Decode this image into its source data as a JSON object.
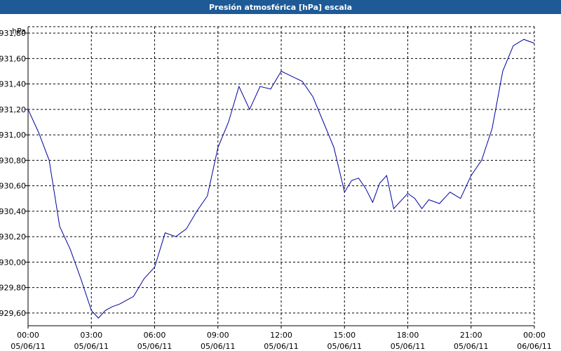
{
  "window": {
    "title": "Presión atmosférica [hPa] escala"
  },
  "chart_data": {
    "type": "line",
    "title": "Presión atmosférica [hPa] escala",
    "ylabel": "hPa",
    "xlabel": "",
    "ylim": [
      929.5,
      931.85
    ],
    "xlim": [
      "05/06/11 00:00",
      "06/06/11 00:00"
    ],
    "grid": true,
    "line_color": "#0000a0",
    "y_ticks": [
      "929,60",
      "929,80",
      "930,00",
      "930,20",
      "930,40",
      "930,60",
      "930,80",
      "931,00",
      "931,20",
      "931,40",
      "931,60",
      "931,80"
    ],
    "x_ticks": [
      {
        "time": "00:00",
        "date": "05/06/11"
      },
      {
        "time": "03:00",
        "date": "05/06/11"
      },
      {
        "time": "06:00",
        "date": "05/06/11"
      },
      {
        "time": "09:00",
        "date": "05/06/11"
      },
      {
        "time": "12:00",
        "date": "05/06/11"
      },
      {
        "time": "15:00",
        "date": "05/06/11"
      },
      {
        "time": "18:00",
        "date": "05/06/11"
      },
      {
        "time": "21:00",
        "date": "05/06/11"
      },
      {
        "time": "00:00",
        "date": "06/06/11"
      }
    ],
    "series": [
      {
        "x": [
          "00:00",
          "00:30",
          "01:00",
          "01:30",
          "02:00",
          "02:30",
          "03:00",
          "03:20",
          "03:40",
          "04:00",
          "04:20",
          "04:40",
          "05:00",
          "05:30",
          "06:00",
          "06:30",
          "07:00",
          "07:30",
          "08:00",
          "08:30",
          "09:00",
          "09:30",
          "10:00",
          "10:30",
          "11:00",
          "11:30",
          "12:00",
          "12:30",
          "13:00",
          "13:30",
          "14:00",
          "14:30",
          "15:00",
          "15:20",
          "15:40",
          "16:00",
          "16:20",
          "16:40",
          "17:00",
          "17:20",
          "17:40",
          "18:00",
          "18:20",
          "18:40",
          "19:00",
          "19:30",
          "20:00",
          "20:30",
          "21:00",
          "21:30",
          "22:00",
          "22:30",
          "23:00",
          "23:30",
          "24:00"
        ],
        "y": [
          931.2,
          931.02,
          930.8,
          930.28,
          930.1,
          929.87,
          929.62,
          929.56,
          929.62,
          929.65,
          929.67,
          929.7,
          929.73,
          929.87,
          929.96,
          930.23,
          930.2,
          930.26,
          930.4,
          930.52,
          930.9,
          931.1,
          931.38,
          931.2,
          931.38,
          931.36,
          931.5,
          931.46,
          931.42,
          931.3,
          931.1,
          930.9,
          930.55,
          930.64,
          930.66,
          930.58,
          930.47,
          930.62,
          930.68,
          930.42,
          930.48,
          930.54,
          930.5,
          930.42,
          930.49,
          930.46,
          930.55,
          930.5,
          930.68,
          930.8,
          931.05,
          931.5,
          931.7,
          931.75,
          931.72
        ]
      }
    ]
  }
}
